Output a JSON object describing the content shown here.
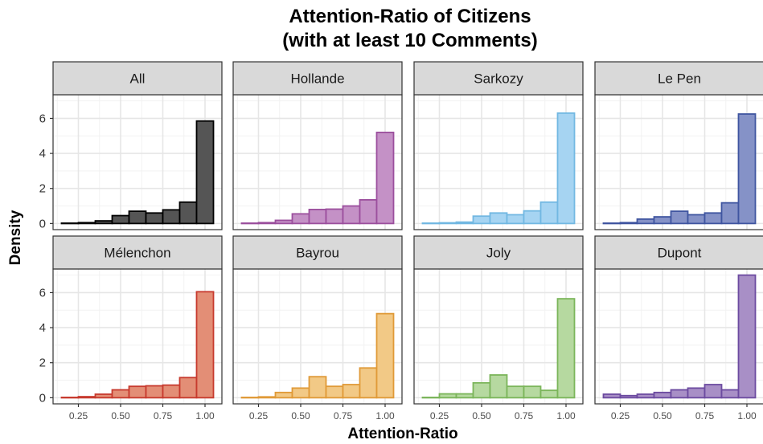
{
  "chart_data": {
    "type": "bar",
    "title": [
      "Attention-Ratio of Citizens",
      "(with at least 10 Comments)"
    ],
    "xlabel": "Attention-Ratio",
    "ylabel": "Density",
    "grid": true,
    "bin_edges": [
      0.15,
      0.25,
      0.35,
      0.45,
      0.55,
      0.65,
      0.75,
      0.85,
      0.95,
      1.05
    ],
    "xticks": [
      0.25,
      0.5,
      0.75,
      1.0
    ],
    "xtick_labels": [
      "0.25",
      "0.50",
      "0.75",
      "1.00"
    ],
    "yticks": [
      0,
      2,
      4,
      6
    ],
    "ytick_labels": [
      "0",
      "2",
      "4",
      "6"
    ],
    "xlim": [
      0.1,
      1.1
    ],
    "ylim": [
      -0.35,
      7.35
    ],
    "panels": [
      {
        "name": "All",
        "stroke": "#000000",
        "fill": "#555555",
        "values": [
          0.02,
          0.05,
          0.15,
          0.45,
          0.7,
          0.6,
          0.78,
          1.22,
          5.85
        ]
      },
      {
        "name": "Hollande",
        "stroke": "#9B4F9D",
        "fill": "#C491C6",
        "values": [
          0.02,
          0.05,
          0.18,
          0.55,
          0.8,
          0.82,
          1.0,
          1.35,
          5.2
        ]
      },
      {
        "name": "Sarkozy",
        "stroke": "#72B8E2",
        "fill": "#A6D4F2",
        "values": [
          0.02,
          0.04,
          0.08,
          0.42,
          0.6,
          0.5,
          0.72,
          1.22,
          6.3
        ]
      },
      {
        "name": "Le Pen",
        "stroke": "#3F55A0",
        "fill": "#8592C7",
        "values": [
          0.02,
          0.05,
          0.25,
          0.38,
          0.7,
          0.5,
          0.6,
          1.18,
          6.25
        ]
      },
      {
        "name": "Mélenchon",
        "stroke": "#C73A2E",
        "fill": "#E38E76",
        "values": [
          0.02,
          0.06,
          0.2,
          0.45,
          0.65,
          0.68,
          0.72,
          1.15,
          6.05
        ]
      },
      {
        "name": "Bayrou",
        "stroke": "#E09A38",
        "fill": "#F2C986",
        "values": [
          0.02,
          0.05,
          0.3,
          0.55,
          1.2,
          0.65,
          0.75,
          1.7,
          4.8
        ]
      },
      {
        "name": "Joly",
        "stroke": "#7BB55A",
        "fill": "#B6D9A0",
        "values": [
          0.02,
          0.22,
          0.22,
          0.85,
          1.3,
          0.65,
          0.65,
          0.42,
          5.65
        ]
      },
      {
        "name": "Dupont",
        "stroke": "#6C4BA0",
        "fill": "#A88FC6",
        "values": [
          0.2,
          0.12,
          0.2,
          0.3,
          0.45,
          0.55,
          0.75,
          0.45,
          7.0
        ]
      }
    ]
  }
}
